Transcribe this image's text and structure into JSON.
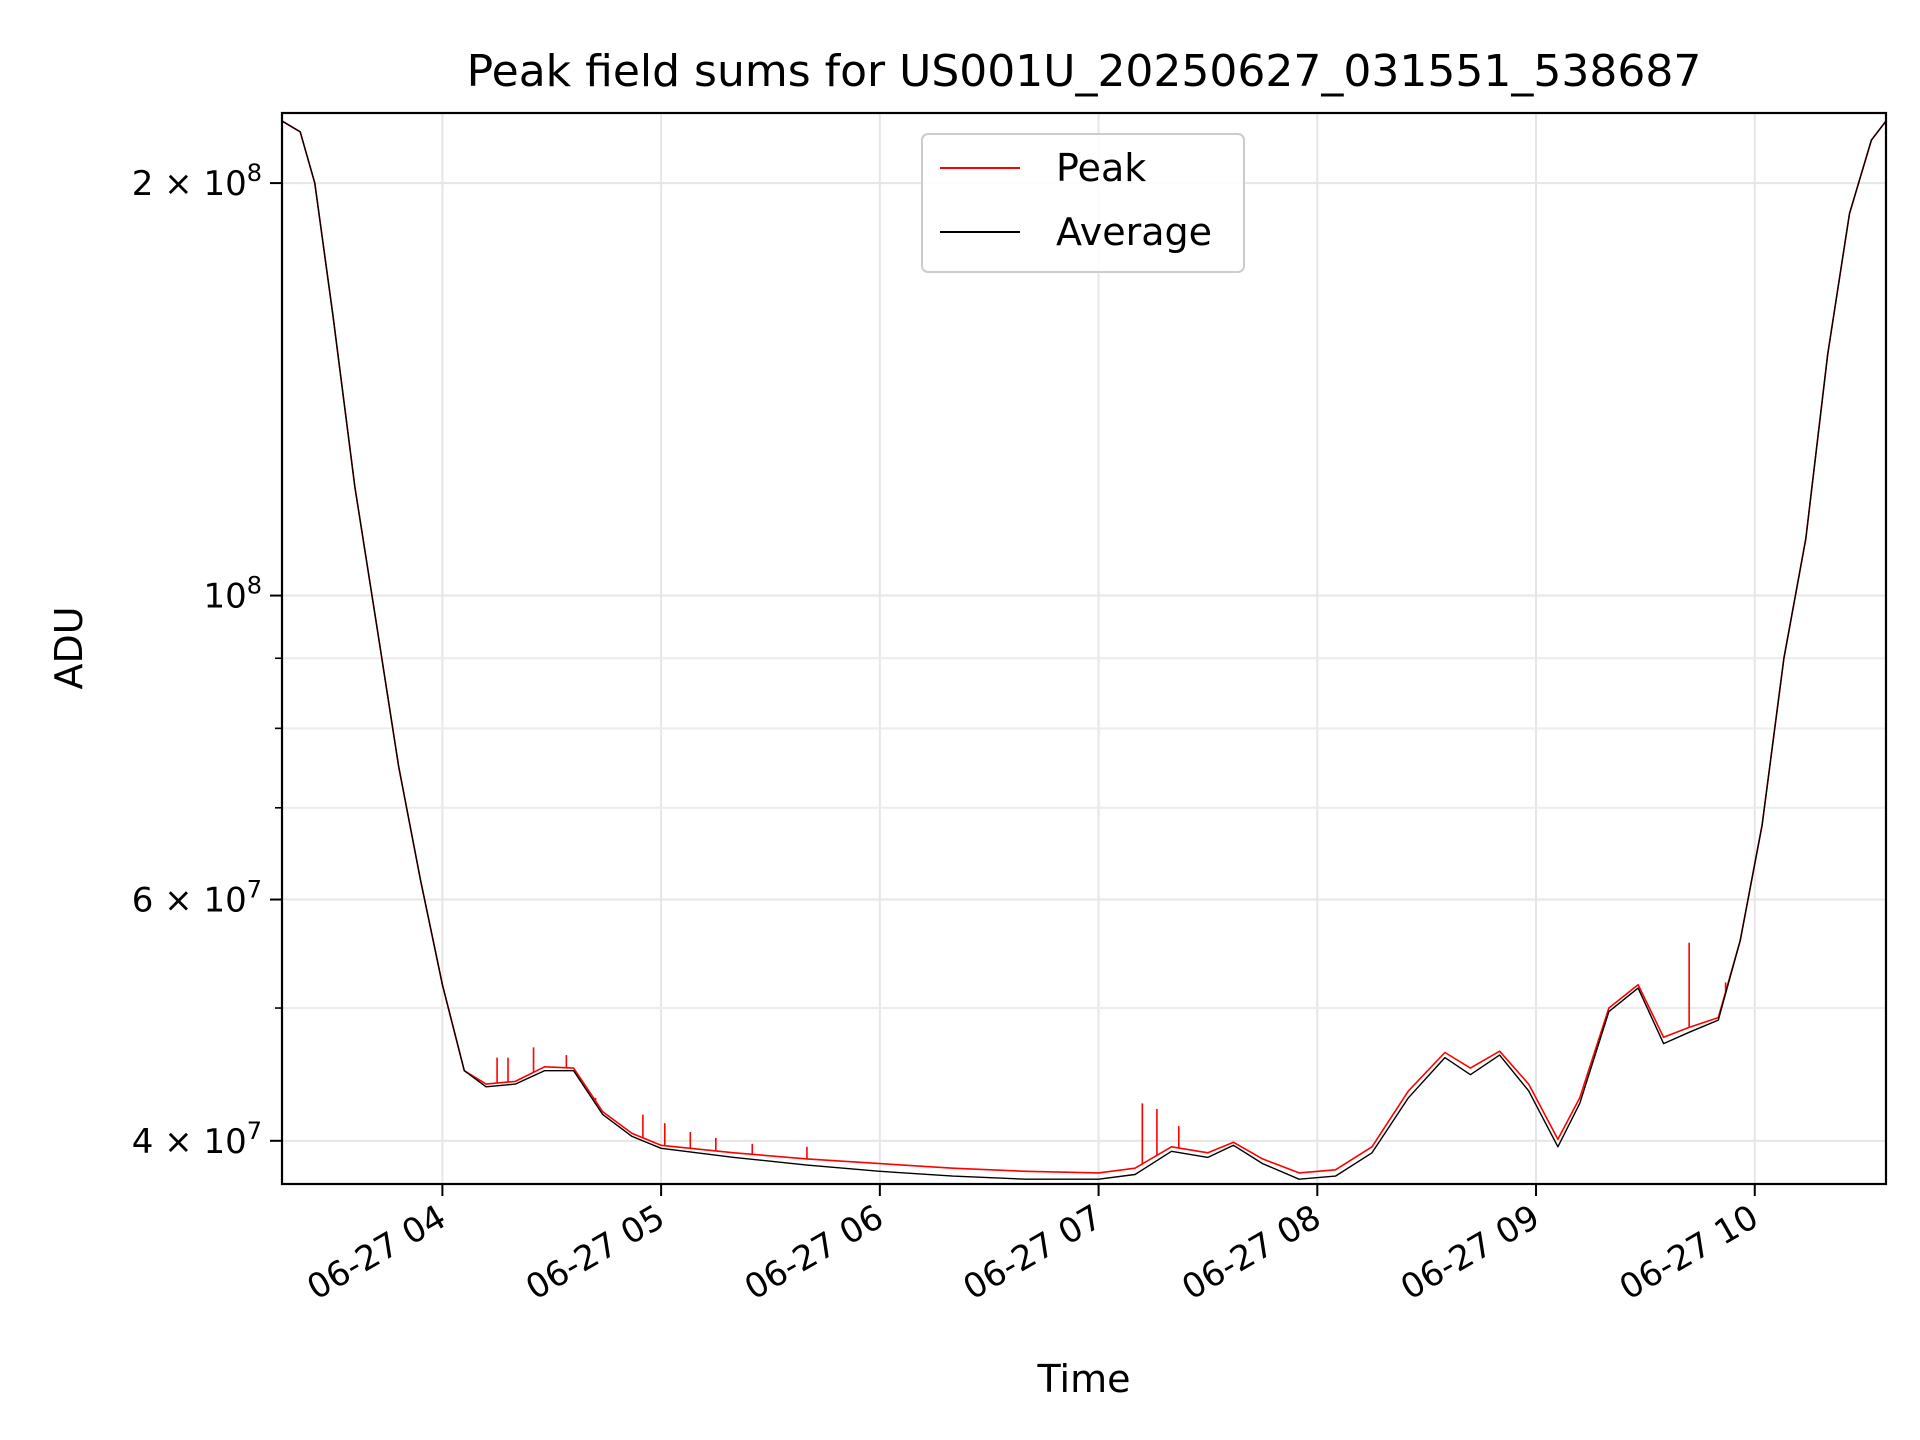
{
  "chart_data": {
    "type": "line",
    "title": "Peak field sums for US001U_20250627_031551_538687",
    "xlabel": "Time",
    "ylabel": "ADU",
    "yscale": "log",
    "grid": true,
    "legend": {
      "placement": "top-center",
      "entries": [
        "Peak",
        "Average"
      ]
    },
    "xlim": [
      "2025-06-27 03:16",
      "2025-06-27 10:36"
    ],
    "ylim": [
      37200000,
      225000000
    ],
    "x_ticks": [
      {
        "value": "2025-06-27 04:00",
        "label": "06-27 04"
      },
      {
        "value": "2025-06-27 05:00",
        "label": "06-27 05"
      },
      {
        "value": "2025-06-27 06:00",
        "label": "06-27 06"
      },
      {
        "value": "2025-06-27 07:00",
        "label": "06-27 07"
      },
      {
        "value": "2025-06-27 08:00",
        "label": "06-27 08"
      },
      {
        "value": "2025-06-27 09:00",
        "label": "06-27 09"
      },
      {
        "value": "2025-06-27 10:00",
        "label": "06-27 10"
      }
    ],
    "y_major_ticks": [
      {
        "value": 40000000,
        "label": "4 × 10",
        "exp": "7"
      },
      {
        "value": 60000000,
        "label": "6 × 10",
        "exp": "7"
      },
      {
        "value": 100000000,
        "label": "10",
        "exp": "8"
      },
      {
        "value": 200000000,
        "label": "2 × 10",
        "exp": "8"
      }
    ],
    "y_minor_ticks": [
      50000000,
      70000000,
      80000000,
      90000000
    ],
    "series": [
      {
        "name": "Peak",
        "color": "#ff0000",
        "x": [
          "2025-06-27 03:16",
          "2025-06-27 03:21",
          "2025-06-27 03:25",
          "2025-06-27 03:30",
          "2025-06-27 03:36",
          "2025-06-27 03:42",
          "2025-06-27 03:48",
          "2025-06-27 03:54",
          "2025-06-27 04:00",
          "2025-06-27 04:06",
          "2025-06-27 04:12",
          "2025-06-27 04:20",
          "2025-06-27 04:28",
          "2025-06-27 04:36",
          "2025-06-27 04:44",
          "2025-06-27 04:52",
          "2025-06-27 05:00",
          "2025-06-27 05:20",
          "2025-06-27 05:40",
          "2025-06-27 06:00",
          "2025-06-27 06:20",
          "2025-06-27 06:40",
          "2025-06-27 07:00",
          "2025-06-27 07:10",
          "2025-06-27 07:20",
          "2025-06-27 07:30",
          "2025-06-27 07:37",
          "2025-06-27 07:45",
          "2025-06-27 07:55",
          "2025-06-27 08:05",
          "2025-06-27 08:15",
          "2025-06-27 08:25",
          "2025-06-27 08:35",
          "2025-06-27 08:42",
          "2025-06-27 08:50",
          "2025-06-27 08:58",
          "2025-06-27 09:06",
          "2025-06-27 09:12",
          "2025-06-27 09:20",
          "2025-06-27 09:28",
          "2025-06-27 09:35",
          "2025-06-27 09:42",
          "2025-06-27 09:50",
          "2025-06-27 09:56",
          "2025-06-27 10:02",
          "2025-06-27 10:08",
          "2025-06-27 10:14",
          "2025-06-27 10:20",
          "2025-06-27 10:26",
          "2025-06-27 10:32",
          "2025-06-27 10:36"
        ],
        "y": [
          222000000,
          218000000,
          200000000,
          160000000,
          120000000,
          95000000,
          75000000,
          62000000,
          52000000,
          45000000,
          44000000,
          44200000,
          45300000,
          45200000,
          42000000,
          40500000,
          39700000,
          39200000,
          38800000,
          38500000,
          38200000,
          38000000,
          37900000,
          38200000,
          39600000,
          39200000,
          39900000,
          38800000,
          37900000,
          38100000,
          39600000,
          43500000,
          46400000,
          45200000,
          46500000,
          44000000,
          40100000,
          43000000,
          50000000,
          52000000,
          47600000,
          48400000,
          49200000,
          56000000,
          68000000,
          90000000,
          110000000,
          150000000,
          190000000,
          215000000,
          222000000
        ]
      },
      {
        "name": "Average",
        "color": "#000000",
        "x": [
          "2025-06-27 03:16",
          "2025-06-27 03:21",
          "2025-06-27 03:25",
          "2025-06-27 03:30",
          "2025-06-27 03:36",
          "2025-06-27 03:42",
          "2025-06-27 03:48",
          "2025-06-27 03:54",
          "2025-06-27 04:00",
          "2025-06-27 04:06",
          "2025-06-27 04:12",
          "2025-06-27 04:20",
          "2025-06-27 04:28",
          "2025-06-27 04:36",
          "2025-06-27 04:44",
          "2025-06-27 04:52",
          "2025-06-27 05:00",
          "2025-06-27 05:20",
          "2025-06-27 05:40",
          "2025-06-27 06:00",
          "2025-06-27 06:20",
          "2025-06-27 06:40",
          "2025-06-27 07:00",
          "2025-06-27 07:10",
          "2025-06-27 07:20",
          "2025-06-27 07:30",
          "2025-06-27 07:37",
          "2025-06-27 07:45",
          "2025-06-27 07:55",
          "2025-06-27 08:05",
          "2025-06-27 08:15",
          "2025-06-27 08:25",
          "2025-06-27 08:35",
          "2025-06-27 08:42",
          "2025-06-27 08:50",
          "2025-06-27 08:58",
          "2025-06-27 09:06",
          "2025-06-27 09:12",
          "2025-06-27 09:20",
          "2025-06-27 09:28",
          "2025-06-27 09:35",
          "2025-06-27 09:42",
          "2025-06-27 09:50",
          "2025-06-27 09:56",
          "2025-06-27 10:02",
          "2025-06-27 10:08",
          "2025-06-27 10:14",
          "2025-06-27 10:20",
          "2025-06-27 10:26",
          "2025-06-27 10:32",
          "2025-06-27 10:36"
        ],
        "y": [
          222000000,
          218000000,
          200000000,
          160000000,
          120000000,
          95000000,
          75000000,
          62000000,
          52000000,
          45000000,
          43800000,
          44000000,
          45000000,
          45000000,
          41800000,
          40300000,
          39500000,
          38900000,
          38400000,
          38000000,
          37700000,
          37500000,
          37500000,
          37800000,
          39300000,
          38900000,
          39700000,
          38500000,
          37500000,
          37700000,
          39200000,
          43000000,
          46000000,
          44700000,
          46200000,
          43500000,
          39600000,
          42600000,
          49700000,
          51700000,
          47100000,
          48000000,
          49000000,
          56000000,
          68000000,
          90000000,
          110000000,
          150000000,
          190000000,
          215000000,
          222000000
        ]
      }
    ],
    "peak_spikes": [
      {
        "x": "2025-06-27 04:15",
        "y": 46000000
      },
      {
        "x": "2025-06-27 04:18",
        "y": 46000000
      },
      {
        "x": "2025-06-27 04:25",
        "y": 46800000
      },
      {
        "x": "2025-06-27 04:34",
        "y": 46200000
      },
      {
        "x": "2025-06-27 04:42",
        "y": 43000000
      },
      {
        "x": "2025-06-27 04:55",
        "y": 41800000
      },
      {
        "x": "2025-06-27 05:01",
        "y": 41200000
      },
      {
        "x": "2025-06-27 05:08",
        "y": 40600000
      },
      {
        "x": "2025-06-27 05:15",
        "y": 40200000
      },
      {
        "x": "2025-06-27 05:25",
        "y": 39800000
      },
      {
        "x": "2025-06-27 05:40",
        "y": 39600000
      },
      {
        "x": "2025-06-27 07:12",
        "y": 42600000
      },
      {
        "x": "2025-06-27 07:16",
        "y": 42200000
      },
      {
        "x": "2025-06-27 07:22",
        "y": 41000000
      },
      {
        "x": "2025-06-27 09:42",
        "y": 55800000
      },
      {
        "x": "2025-06-27 09:52",
        "y": 52200000
      }
    ]
  }
}
